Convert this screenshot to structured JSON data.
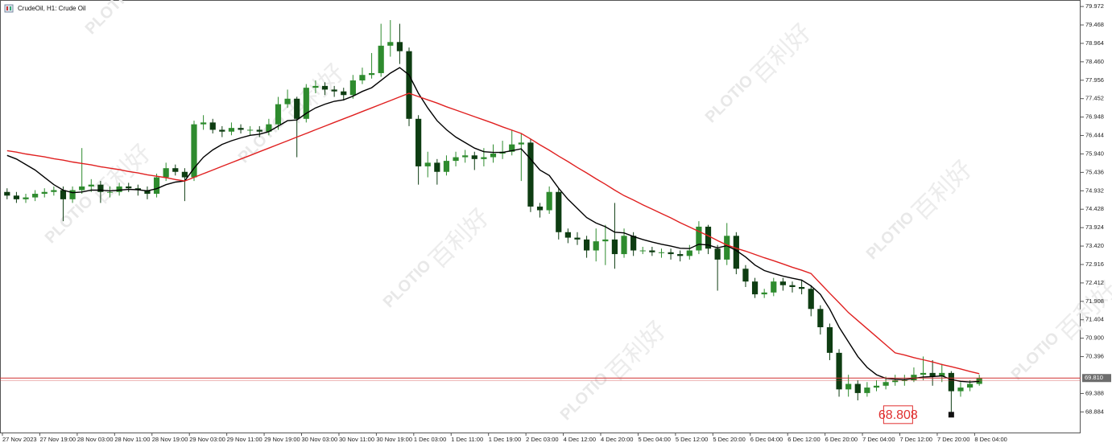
{
  "chart_data": {
    "type": "candlestick",
    "title": "CrudeOil, H1:  Crude Oil",
    "watermark": {
      "brand": "PLOTIO",
      "cn": "百利好"
    },
    "up_color": "#2e8b2e",
    "down_color": "#0e3d12",
    "x": [
      "27 Nov 2023",
      null,
      null,
      null,
      "27 Nov 19:00",
      null,
      null,
      null,
      "28 Nov 03:00",
      null,
      null,
      null,
      "28 Nov 11:00",
      null,
      null,
      null,
      "28 Nov 19:00",
      null,
      null,
      null,
      "29 Nov 03:00",
      null,
      null,
      null,
      "29 Nov 11:00",
      null,
      null,
      null,
      "29 Nov 19:00",
      null,
      null,
      null,
      "30 Nov 03:00",
      null,
      null,
      null,
      "30 Nov 11:00",
      null,
      null,
      null,
      "30 Nov 19:00",
      null,
      null,
      null,
      "1 Dec 03:00",
      null,
      null,
      null,
      "1 Dec 11:00",
      null,
      null,
      null,
      "1 Dec 19:00",
      null,
      null,
      null,
      "2 Dec 03:00",
      null,
      null,
      null,
      "4 Dec 12:00",
      null,
      null,
      null,
      "4 Dec 20:00",
      null,
      null,
      null,
      "5 Dec 04:00",
      null,
      null,
      null,
      "5 Dec 12:00",
      null,
      null,
      null,
      "5 Dec 20:00",
      null,
      null,
      null,
      "6 Dec 04:00",
      null,
      null,
      null,
      "6 Dec 12:00",
      null,
      null,
      null,
      "6 Dec 20:00",
      null,
      null,
      null,
      "7 Dec 04:00",
      null,
      null,
      null,
      "7 Dec 12:00",
      null,
      null,
      null,
      "7 Dec 20:00",
      null,
      null,
      null,
      "8 Dec 04:00"
    ],
    "open": [
      74.9,
      74.8,
      74.7,
      74.75,
      74.85,
      74.9,
      74.95,
      74.7,
      74.95,
      75.05,
      75.1,
      74.9,
      74.9,
      75.05,
      75.0,
      74.95,
      74.85,
      75.3,
      75.55,
      75.45,
      75.3,
      76.75,
      76.8,
      76.6,
      76.55,
      76.65,
      76.6,
      76.6,
      76.55,
      76.75,
      77.3,
      77.45,
      76.9,
      77.75,
      77.8,
      77.7,
      77.65,
      77.55,
      77.95,
      78.1,
      78.15,
      78.9,
      79.0,
      78.75,
      76.9,
      75.6,
      75.7,
      75.45,
      75.75,
      75.85,
      75.9,
      75.8,
      75.85,
      75.95,
      76.0,
      76.2,
      76.25,
      74.5,
      74.4,
      74.9,
      73.8,
      73.65,
      73.6,
      73.3,
      73.55,
      73.6,
      73.2,
      73.7,
      73.3,
      73.3,
      73.25,
      73.25,
      73.2,
      73.15,
      73.3,
      73.95,
      73.35,
      73.05,
      73.7,
      72.8,
      72.45,
      72.1,
      72.15,
      72.45,
      72.35,
      72.3,
      72.25,
      71.7,
      71.2,
      70.5,
      69.5,
      69.65,
      69.4,
      69.55,
      69.6,
      69.7,
      69.75,
      69.75,
      69.9,
      69.95,
      69.85,
      69.95,
      69.45,
      69.55,
      69.65
    ],
    "high": [
      75.0,
      74.9,
      74.85,
      74.95,
      75.0,
      75.05,
      75.05,
      75.05,
      76.1,
      75.25,
      75.2,
      75.05,
      75.15,
      75.15,
      75.1,
      75.05,
      75.4,
      75.7,
      75.65,
      75.55,
      76.85,
      77.0,
      76.9,
      76.7,
      76.8,
      76.75,
      76.7,
      76.7,
      76.9,
      77.5,
      77.7,
      77.5,
      77.85,
      77.95,
      77.9,
      77.8,
      77.75,
      78.1,
      78.3,
      78.7,
      79.5,
      79.6,
      79.5,
      78.85,
      77.0,
      76.0,
      75.8,
      75.9,
      76.0,
      76.05,
      76.0,
      76.1,
      76.2,
      76.3,
      76.6,
      76.5,
      76.35,
      74.6,
      75.05,
      75.0,
      73.9,
      73.8,
      73.7,
      73.9,
      74.0,
      74.6,
      73.9,
      73.8,
      73.4,
      73.4,
      73.35,
      73.35,
      73.3,
      73.45,
      74.1,
      74.0,
      73.45,
      74.05,
      73.8,
      72.9,
      72.55,
      72.25,
      72.55,
      72.55,
      72.45,
      72.5,
      72.35,
      71.8,
      71.3,
      70.6,
      69.9,
      69.75,
      69.7,
      69.75,
      69.85,
      69.9,
      69.9,
      70.1,
      70.4,
      70.3,
      70.2,
      70.0,
      69.7,
      69.75,
      69.9
    ],
    "low": [
      74.7,
      74.6,
      74.6,
      74.65,
      74.75,
      74.8,
      74.1,
      74.6,
      74.85,
      74.9,
      74.6,
      74.75,
      74.8,
      74.9,
      74.8,
      74.7,
      74.75,
      75.2,
      75.35,
      74.65,
      75.2,
      76.6,
      76.5,
      76.4,
      76.45,
      76.5,
      76.45,
      76.4,
      76.45,
      76.6,
      77.2,
      75.85,
      76.8,
      77.6,
      77.55,
      77.5,
      77.4,
      77.45,
      77.85,
      78.0,
      78.05,
      78.6,
      78.4,
      76.7,
      75.1,
      75.3,
      75.1,
      75.35,
      75.6,
      75.7,
      75.5,
      75.6,
      75.7,
      75.8,
      75.9,
      75.2,
      74.35,
      74.2,
      74.3,
      73.6,
      73.5,
      73.45,
      73.1,
      73.0,
      72.9,
      72.8,
      73.1,
      73.15,
      73.2,
      73.15,
      73.1,
      73.05,
      73.0,
      73.05,
      73.2,
      73.2,
      72.2,
      72.9,
      72.65,
      72.3,
      72.0,
      72.0,
      72.05,
      72.2,
      72.15,
      72.1,
      71.5,
      71.0,
      70.3,
      69.3,
      69.3,
      69.2,
      69.3,
      69.45,
      69.5,
      69.6,
      69.6,
      69.7,
      69.75,
      69.6,
      69.7,
      68.808,
      69.3,
      69.45,
      69.6
    ],
    "close": [
      74.8,
      74.7,
      74.75,
      74.85,
      74.9,
      74.95,
      74.7,
      74.95,
      75.05,
      75.1,
      74.9,
      74.9,
      75.05,
      75.0,
      74.95,
      74.85,
      75.3,
      75.55,
      75.45,
      75.3,
      76.75,
      76.8,
      76.6,
      76.55,
      76.65,
      76.6,
      76.6,
      76.55,
      76.75,
      77.3,
      77.45,
      76.9,
      77.75,
      77.8,
      77.7,
      77.65,
      77.55,
      77.95,
      78.1,
      78.15,
      78.9,
      79.0,
      78.75,
      76.9,
      75.6,
      75.7,
      75.45,
      75.75,
      75.85,
      75.9,
      75.8,
      75.85,
      75.95,
      76.0,
      76.2,
      76.25,
      74.5,
      74.4,
      74.9,
      73.8,
      73.65,
      73.6,
      73.3,
      73.55,
      73.6,
      73.2,
      73.7,
      73.3,
      73.3,
      73.25,
      73.25,
      73.2,
      73.15,
      73.3,
      73.95,
      73.35,
      73.05,
      73.7,
      72.8,
      72.45,
      72.1,
      72.15,
      72.45,
      72.35,
      72.3,
      72.25,
      71.7,
      71.2,
      70.5,
      69.5,
      69.65,
      69.4,
      69.55,
      69.6,
      69.7,
      69.75,
      69.75,
      69.9,
      69.95,
      69.85,
      69.95,
      69.45,
      69.55,
      69.65,
      69.81
    ],
    "overlays": [
      {
        "color": "#000000",
        "values": [
          75.9,
          75.8,
          75.65,
          75.5,
          75.3,
          75.1,
          74.95,
          74.88,
          74.9,
          74.95,
          74.95,
          74.93,
          74.95,
          74.97,
          74.96,
          74.93,
          74.99,
          75.1,
          75.17,
          75.2,
          75.55,
          75.85,
          76.05,
          76.2,
          76.3,
          76.38,
          76.45,
          76.48,
          76.55,
          76.7,
          76.85,
          76.87,
          77.05,
          77.2,
          77.3,
          77.38,
          77.42,
          77.52,
          77.65,
          77.75,
          77.95,
          78.15,
          78.3,
          78.1,
          77.6,
          77.2,
          76.85,
          76.6,
          76.4,
          76.25,
          76.1,
          76.0,
          75.98,
          75.98,
          76.03,
          76.08,
          75.8,
          75.5,
          75.35,
          75.0,
          74.7,
          74.45,
          74.2,
          74.05,
          73.95,
          73.8,
          73.78,
          73.68,
          73.6,
          73.53,
          73.47,
          73.42,
          73.36,
          73.35,
          73.47,
          73.45,
          73.37,
          73.43,
          73.3,
          73.12,
          72.9,
          72.75,
          72.67,
          72.6,
          72.54,
          72.49,
          72.33,
          72.1,
          71.7,
          71.2,
          70.8,
          70.4,
          70.1,
          69.9,
          69.8,
          69.78,
          69.77,
          69.8,
          69.84,
          69.85,
          69.87,
          69.77,
          69.72,
          69.7,
          69.72
        ]
      },
      {
        "color": "#e02020",
        "values": [
          76.03,
          75.99,
          75.94,
          75.9,
          75.86,
          75.81,
          75.77,
          75.72,
          75.68,
          75.64,
          75.59,
          75.55,
          75.51,
          75.46,
          75.42,
          75.37,
          75.33,
          75.29,
          75.24,
          75.2,
          75.3,
          75.4,
          75.5,
          75.6,
          75.7,
          75.8,
          75.9,
          76.0,
          76.1,
          76.2,
          76.3,
          76.4,
          76.5,
          76.6,
          76.7,
          76.8,
          76.9,
          77.0,
          77.1,
          77.2,
          77.3,
          77.4,
          77.5,
          77.6,
          77.51,
          77.42,
          77.33,
          77.23,
          77.14,
          77.05,
          76.96,
          76.87,
          76.78,
          76.68,
          76.59,
          76.5,
          76.35,
          76.19,
          76.04,
          75.88,
          75.73,
          75.57,
          75.42,
          75.26,
          75.11,
          74.95,
          74.8,
          74.68,
          74.55,
          74.43,
          74.31,
          74.19,
          74.06,
          73.94,
          73.82,
          73.7,
          73.57,
          73.45,
          73.36,
          73.28,
          73.19,
          73.1,
          73.02,
          72.93,
          72.84,
          72.76,
          72.67,
          72.4,
          72.13,
          71.87,
          71.6,
          71.38,
          71.16,
          70.94,
          70.72,
          70.5,
          70.44,
          70.37,
          70.31,
          70.25,
          70.18,
          70.12,
          70.06,
          69.99,
          69.93
        ]
      }
    ],
    "price_line": {
      "value": 69.81,
      "label": "69.810",
      "color": "#d03030"
    },
    "annotation": 68.808,
    "ylim": [
      68.32,
      80.15
    ],
    "yticks": [
      79.972,
      79.468,
      78.964,
      {
        "value": 78.46,
        "label": "78.460"
      },
      77.956,
      77.452,
      76.948,
      76.444,
      {
        "value": 75.94,
        "label": "75.940"
      },
      75.436,
      74.932,
      74.428,
      73.924,
      {
        "value": 73.42,
        "label": "73.420"
      },
      72.916,
      72.412,
      71.908,
      71.404,
      {
        "value": 70.9,
        "label": "70.900"
      },
      70.396,
      69.388,
      68.884
    ],
    "grid": false
  }
}
